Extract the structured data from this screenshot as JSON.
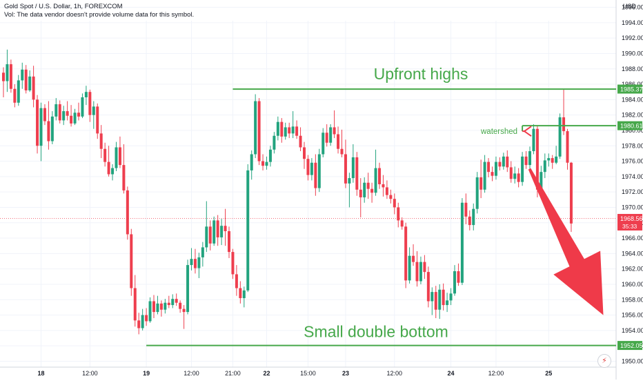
{
  "header": {
    "title": "Gold Spot / U.S. Dollar, 1h, FOREXCOM",
    "volume_note": "Vol: The data vendor doesn't provide volume data for this symbol."
  },
  "currency": "USD",
  "colors": {
    "up": "#22a37e",
    "down": "#ee3e4e",
    "line": "#46a84a",
    "arrow": "#ef3a49",
    "grid": "#f0f3fa",
    "text": "#131722"
  },
  "chart_data": {
    "type": "candlestick",
    "symbol": "Gold Spot / U.S. Dollar",
    "interval": "1h",
    "ylim": [
      1949,
      1999
    ],
    "y_ticks": [
      1950,
      1952,
      1954,
      1956,
      1958,
      1960,
      1962,
      1964,
      1966,
      1968,
      1970,
      1972,
      1974,
      1976,
      1978,
      1980,
      1982,
      1984,
      1986,
      1988,
      1990,
      1992,
      1994,
      1996
    ],
    "x_ticks": [
      "18",
      "12:00",
      "19",
      "12:00",
      "21:00",
      "22",
      "15:00",
      "23",
      "12:00",
      "24",
      "12:00",
      "25"
    ],
    "x_tick_index": [
      10,
      23,
      38,
      50,
      61,
      70,
      81,
      91,
      104,
      119,
      131,
      145
    ],
    "grid": true,
    "current_price": {
      "value": 1968.56,
      "label": "1968.56",
      "countdown": "35:33"
    },
    "price_labels": [
      {
        "value": 1985.37,
        "label": "1985.37",
        "color": "#46a84a"
      },
      {
        "value": 1980.61,
        "label": "1980.61",
        "color": "#46a84a"
      },
      {
        "value": 1952.05,
        "label": "1952.05",
        "color": "#46a84a"
      }
    ],
    "candles": [
      [
        1987.5,
        1988.2,
        1984.3,
        1986.4
      ],
      [
        1986.4,
        1990.5,
        1985.0,
        1988.6
      ],
      [
        1988.6,
        1989.2,
        1984.9,
        1985.4
      ],
      [
        1985.4,
        1986.0,
        1983.0,
        1983.6
      ],
      [
        1983.6,
        1987.2,
        1983.2,
        1986.5
      ],
      [
        1986.5,
        1988.8,
        1985.4,
        1987.9
      ],
      [
        1987.9,
        1988.5,
        1984.8,
        1985.2
      ],
      [
        1985.2,
        1987.8,
        1985.0,
        1987.0
      ],
      [
        1987.0,
        1988.4,
        1983.0,
        1984.0
      ],
      [
        1984.0,
        1984.6,
        1977.0,
        1978.0
      ],
      [
        1978.0,
        1983.6,
        1976.0,
        1982.9
      ],
      [
        1982.9,
        1983.4,
        1980.7,
        1981.2
      ],
      [
        1981.2,
        1983.8,
        1977.5,
        1978.6
      ],
      [
        1978.6,
        1982.5,
        1978.2,
        1981.8
      ],
      [
        1981.8,
        1984.2,
        1981.3,
        1983.4
      ],
      [
        1983.4,
        1983.9,
        1980.9,
        1981.3
      ],
      [
        1981.3,
        1983.2,
        1980.7,
        1982.5
      ],
      [
        1982.5,
        1983.8,
        1981.3,
        1981.9
      ],
      [
        1981.9,
        1983.3,
        1980.5,
        1980.9
      ],
      [
        1980.9,
        1982.8,
        1980.7,
        1982.3
      ],
      [
        1982.3,
        1983.6,
        1981.3,
        1981.8
      ],
      [
        1981.8,
        1984.8,
        1981.6,
        1984.3
      ],
      [
        1984.3,
        1985.8,
        1983.3,
        1985.0
      ],
      [
        1985.0,
        1985.3,
        1981.1,
        1982.0
      ],
      [
        1982.0,
        1983.8,
        1980.2,
        1983.1
      ],
      [
        1983.1,
        1983.5,
        1978.9,
        1979.6
      ],
      [
        1979.6,
        1980.7,
        1976.4,
        1977.6
      ],
      [
        1977.6,
        1978.4,
        1975.3,
        1975.9
      ],
      [
        1975.9,
        1978.0,
        1974.0,
        1974.3
      ],
      [
        1974.3,
        1975.6,
        1973.5,
        1975.1
      ],
      [
        1975.1,
        1978.5,
        1974.7,
        1977.8
      ],
      [
        1977.8,
        1979.2,
        1975.1,
        1975.5
      ],
      [
        1975.5,
        1978.2,
        1971.8,
        1972.2
      ],
      [
        1972.2,
        1972.7,
        1965.8,
        1966.5
      ],
      [
        1966.5,
        1967.2,
        1958.5,
        1959.5
      ],
      [
        1959.5,
        1961.2,
        1954.5,
        1955.3
      ],
      [
        1955.3,
        1956.3,
        1953.5,
        1954.3
      ],
      [
        1954.3,
        1956.8,
        1954.0,
        1956.0
      ],
      [
        1956.0,
        1956.9,
        1954.6,
        1955.2
      ],
      [
        1955.2,
        1958.3,
        1955.0,
        1957.8
      ],
      [
        1957.8,
        1958.6,
        1955.6,
        1956.4
      ],
      [
        1956.4,
        1958.5,
        1956.1,
        1957.5
      ],
      [
        1957.5,
        1957.9,
        1955.8,
        1956.7
      ],
      [
        1956.7,
        1958.1,
        1956.2,
        1957.6
      ],
      [
        1957.6,
        1958.5,
        1956.9,
        1957.3
      ],
      [
        1957.3,
        1958.7,
        1956.9,
        1958.1
      ],
      [
        1958.1,
        1958.8,
        1957.2,
        1957.6
      ],
      [
        1957.6,
        1957.9,
        1956.3,
        1956.8
      ],
      [
        1956.8,
        1957.3,
        1954.2,
        1956.4
      ],
      [
        1956.4,
        1963.2,
        1956.1,
        1962.5
      ],
      [
        1962.5,
        1964.7,
        1961.8,
        1963.3
      ],
      [
        1963.3,
        1964.6,
        1961.4,
        1962.1
      ],
      [
        1962.1,
        1964.1,
        1960.8,
        1963.5
      ],
      [
        1963.5,
        1965.5,
        1962.3,
        1964.8
      ],
      [
        1964.8,
        1970.8,
        1964.2,
        1967.5
      ],
      [
        1967.5,
        1968.3,
        1964.4,
        1965.3
      ],
      [
        1965.3,
        1968.8,
        1965.0,
        1968.3
      ],
      [
        1968.3,
        1969.0,
        1965.0,
        1966.1
      ],
      [
        1966.1,
        1968.5,
        1965.1,
        1967.6
      ],
      [
        1967.6,
        1969.8,
        1965.0,
        1966.9
      ],
      [
        1966.9,
        1967.5,
        1963.4,
        1964.2
      ],
      [
        1964.2,
        1964.6,
        1960.7,
        1961.3
      ],
      [
        1961.3,
        1962.5,
        1958.5,
        1959.5
      ],
      [
        1959.5,
        1960.4,
        1957.5,
        1958.2
      ],
      [
        1958.2,
        1959.7,
        1957.0,
        1959.2
      ],
      [
        1959.2,
        1975.6,
        1959.0,
        1974.8
      ],
      [
        1974.8,
        1977.4,
        1973.6,
        1976.9
      ],
      [
        1976.9,
        1984.7,
        1976.4,
        1983.8
      ],
      [
        1983.8,
        1984.2,
        1975.5,
        1976.0
      ],
      [
        1976.0,
        1976.9,
        1974.8,
        1975.4
      ],
      [
        1975.4,
        1976.6,
        1974.9,
        1975.9
      ],
      [
        1975.9,
        1978.0,
        1975.3,
        1977.5
      ],
      [
        1977.5,
        1979.8,
        1977.0,
        1979.3
      ],
      [
        1979.3,
        1981.8,
        1978.7,
        1981.1
      ],
      [
        1981.1,
        1981.6,
        1978.4,
        1979.2
      ],
      [
        1979.2,
        1981.0,
        1978.8,
        1980.4
      ],
      [
        1980.4,
        1981.0,
        1979.0,
        1979.6
      ],
      [
        1979.6,
        1982.5,
        1979.0,
        1980.5
      ],
      [
        1980.5,
        1981.3,
        1978.9,
        1979.3
      ],
      [
        1979.3,
        1980.4,
        1977.3,
        1977.8
      ],
      [
        1977.8,
        1978.5,
        1975.0,
        1976.3
      ],
      [
        1976.3,
        1976.8,
        1973.5,
        1974.2
      ],
      [
        1974.2,
        1976.4,
        1973.5,
        1975.8
      ],
      [
        1975.8,
        1976.9,
        1971.5,
        1972.5
      ],
      [
        1972.5,
        1977.6,
        1972.0,
        1976.9
      ],
      [
        1976.9,
        1980.3,
        1976.5,
        1979.7
      ],
      [
        1979.7,
        1980.8,
        1977.9,
        1978.4
      ],
      [
        1978.4,
        1980.8,
        1978.0,
        1980.4
      ],
      [
        1980.4,
        1982.6,
        1979.0,
        1979.5
      ],
      [
        1979.5,
        1980.5,
        1977.0,
        1977.6
      ],
      [
        1977.6,
        1980.1,
        1976.5,
        1976.9
      ],
      [
        1976.9,
        1978.8,
        1972.5,
        1973.1
      ],
      [
        1973.1,
        1974.5,
        1970.0,
        1973.8
      ],
      [
        1973.8,
        1978.2,
        1973.2,
        1976.5
      ],
      [
        1976.5,
        1977.2,
        1971.5,
        1972.3
      ],
      [
        1972.3,
        1973.8,
        1968.7,
        1971.3
      ],
      [
        1971.3,
        1973.9,
        1970.6,
        1973.2
      ],
      [
        1973.2,
        1974.5,
        1971.1,
        1972.4
      ],
      [
        1972.4,
        1973.2,
        1970.6,
        1971.9
      ],
      [
        1971.9,
        1977.5,
        1971.5,
        1975.1
      ],
      [
        1975.1,
        1975.8,
        1972.4,
        1973.0
      ],
      [
        1973.0,
        1974.2,
        1971.4,
        1972.6
      ],
      [
        1972.6,
        1973.5,
        1971.1,
        1971.6
      ],
      [
        1971.6,
        1972.3,
        1970.5,
        1971.1
      ],
      [
        1971.1,
        1971.8,
        1969.1,
        1970.0
      ],
      [
        1970.0,
        1970.6,
        1967.4,
        1968.3
      ],
      [
        1968.3,
        1968.7,
        1967.1,
        1967.5
      ],
      [
        1967.5,
        1968.0,
        1959.5,
        1960.5
      ],
      [
        1960.5,
        1964.8,
        1960.1,
        1963.7
      ],
      [
        1963.7,
        1965.2,
        1962.4,
        1962.9
      ],
      [
        1962.9,
        1964.3,
        1959.7,
        1960.4
      ],
      [
        1960.4,
        1963.6,
        1960.0,
        1962.9
      ],
      [
        1962.9,
        1963.8,
        1960.7,
        1961.6
      ],
      [
        1961.6,
        1962.3,
        1957.0,
        1957.8
      ],
      [
        1957.8,
        1959.6,
        1956.0,
        1959.0
      ],
      [
        1959.0,
        1959.8,
        1955.6,
        1956.7
      ],
      [
        1956.7,
        1960.0,
        1955.5,
        1959.3
      ],
      [
        1959.3,
        1960.1,
        1956.6,
        1957.3
      ],
      [
        1957.3,
        1958.9,
        1956.4,
        1957.9
      ],
      [
        1957.9,
        1959.5,
        1957.3,
        1958.8
      ],
      [
        1958.8,
        1962.5,
        1958.5,
        1961.7
      ],
      [
        1961.7,
        1962.7,
        1959.8,
        1960.2
      ],
      [
        1960.2,
        1971.2,
        1959.9,
        1970.6
      ],
      [
        1970.6,
        1971.8,
        1967.8,
        1968.8
      ],
      [
        1968.8,
        1969.6,
        1967.0,
        1967.7
      ],
      [
        1967.7,
        1970.5,
        1967.0,
        1969.8
      ],
      [
        1969.8,
        1974.6,
        1969.2,
        1973.9
      ],
      [
        1973.9,
        1976.2,
        1971.2,
        1972.3
      ],
      [
        1972.3,
        1976.8,
        1971.9,
        1975.9
      ],
      [
        1975.9,
        1976.4,
        1973.9,
        1974.6
      ],
      [
        1974.6,
        1975.3,
        1973.4,
        1974.1
      ],
      [
        1974.1,
        1976.6,
        1973.6,
        1975.9
      ],
      [
        1975.9,
        1976.5,
        1974.8,
        1975.3
      ],
      [
        1975.3,
        1977.1,
        1974.9,
        1976.6
      ],
      [
        1976.6,
        1977.4,
        1974.6,
        1975.2
      ],
      [
        1975.2,
        1976.0,
        1973.2,
        1973.7
      ],
      [
        1973.7,
        1975.3,
        1973.1,
        1974.4
      ],
      [
        1974.4,
        1975.1,
        1972.6,
        1973.3
      ],
      [
        1973.3,
        1977.2,
        1972.8,
        1976.6
      ],
      [
        1976.6,
        1977.3,
        1975.0,
        1975.5
      ],
      [
        1975.5,
        1977.9,
        1974.5,
        1977.3
      ],
      [
        1977.3,
        1980.8,
        1976.9,
        1980.2
      ],
      [
        1980.2,
        1980.6,
        1971.3,
        1972.3
      ],
      [
        1972.3,
        1975.4,
        1971.7,
        1974.6
      ],
      [
        1974.6,
        1977.0,
        1973.8,
        1976.1
      ],
      [
        1976.1,
        1977.0,
        1975.3,
        1976.4
      ],
      [
        1976.4,
        1976.8,
        1975.0,
        1975.8
      ],
      [
        1975.8,
        1978.0,
        1975.6,
        1976.6
      ],
      [
        1976.6,
        1982.2,
        1976.3,
        1981.7
      ],
      [
        1981.7,
        1985.4,
        1979.4,
        1979.9
      ],
      [
        1979.9,
        1980.2,
        1974.9,
        1975.8
      ],
      [
        1975.8,
        1975.9,
        1966.8,
        1967.9
      ]
    ],
    "annotations": [
      {
        "type": "hline",
        "value": 1985.37,
        "from_index": 61,
        "to_index": 162,
        "text": "Upfront highs",
        "color": "#46a84a"
      },
      {
        "type": "hline",
        "value": 1980.61,
        "from_index": 138,
        "to_index": 162,
        "text": "watershed",
        "color": "#46a84a"
      },
      {
        "type": "hline",
        "value": 1952.05,
        "from_index": 38,
        "to_index": 162,
        "text": "Small double bottom",
        "color": "#46a84a"
      },
      {
        "type": "arrow",
        "from": {
          "index": 139,
          "value": 1975
        },
        "to": {
          "index": 150,
          "value": 1956
        },
        "color": "#ef3a49"
      }
    ]
  }
}
